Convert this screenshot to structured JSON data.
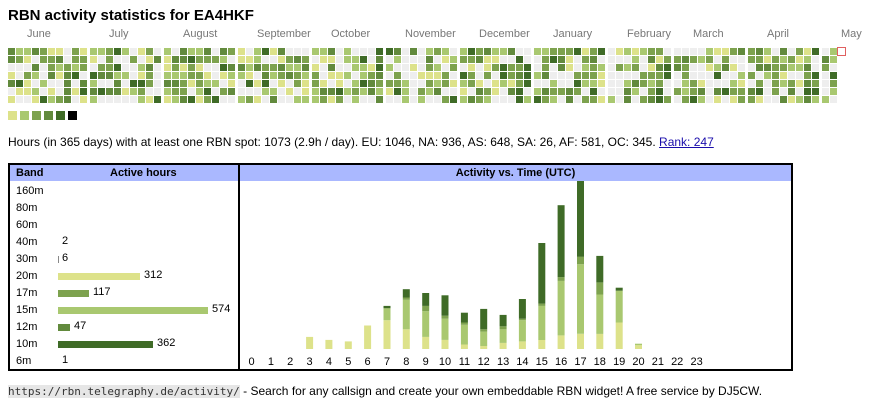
{
  "title": "RBN activity statistics for EA4HKF",
  "colors": {
    "empty": "#eeeeee",
    "levels": [
      "#dde28a",
      "#a9c870",
      "#7da24e",
      "#628a3d",
      "#3f6b27",
      "#000000"
    ],
    "header": "#aab8ff",
    "today_outline": "#e06060"
  },
  "heatmap": {
    "months": [
      "June",
      "July",
      "August",
      "September",
      "October",
      "November",
      "December",
      "January",
      "February",
      "March",
      "April",
      "May"
    ],
    "month_week_starts": [
      0,
      10,
      19,
      28,
      37,
      46,
      55,
      64,
      73,
      81,
      90,
      99
    ],
    "weeks": 102
  },
  "summary": {
    "text": "Hours (in 365 days) with at least one RBN spot: 1073 (2.9h / day). EU: 1046, NA: 936, AS: 648, SA: 26, AF: 581, OC: 345.",
    "rank_label": "Rank: 247"
  },
  "bands_table": {
    "header_band": "Band",
    "header_active": "Active hours",
    "rows": [
      {
        "band": "160m",
        "value": null,
        "level": 0
      },
      {
        "band": "80m",
        "value": null,
        "level": 0
      },
      {
        "band": "60m",
        "value": null,
        "level": 0
      },
      {
        "band": "40m",
        "value": 2,
        "level": 2
      },
      {
        "band": "30m",
        "value": 6,
        "level": 4
      },
      {
        "band": "20m",
        "value": 312,
        "level": 0
      },
      {
        "band": "17m",
        "value": 117,
        "level": 2
      },
      {
        "band": "15m",
        "value": 574,
        "level": 1
      },
      {
        "band": "12m",
        "value": 47,
        "level": 3
      },
      {
        "band": "10m",
        "value": 362,
        "level": 4
      },
      {
        "band": "6m",
        "value": 1,
        "level": 0
      }
    ]
  },
  "activity_chart": {
    "title": "Activity vs. Time (UTC)",
    "x_labels": [
      "0",
      "1",
      "2",
      "3",
      "4",
      "5",
      "6",
      "7",
      "8",
      "9",
      "10",
      "11",
      "12",
      "13",
      "14",
      "15",
      "16",
      "17",
      "18",
      "19",
      "20",
      "21",
      "22",
      "23"
    ]
  },
  "chart_data": {
    "type": "bar",
    "title": "Activity vs. Time (UTC)",
    "categories": [
      "0",
      "1",
      "2",
      "3",
      "4",
      "5",
      "6",
      "7",
      "8",
      "9",
      "10",
      "11",
      "12",
      "13",
      "14",
      "15",
      "16",
      "17",
      "18",
      "19",
      "20",
      "21",
      "22",
      "23"
    ],
    "series": [
      {
        "values": [
          0,
          0,
          0,
          16,
          12,
          10,
          31,
          38,
          26,
          16,
          12,
          6,
          4,
          8,
          10,
          12,
          18,
          20,
          20,
          35,
          5,
          0,
          0,
          0
        ]
      },
      {
        "values": [
          0,
          0,
          0,
          0,
          0,
          0,
          0,
          16,
          39,
          34,
          28,
          26,
          19,
          18,
          28,
          45,
          72,
          92,
          52,
          42,
          2,
          0,
          0,
          0
        ]
      },
      {
        "values": [
          0,
          0,
          0,
          0,
          0,
          0,
          0,
          0,
          3,
          7,
          4,
          3,
          3,
          4,
          2,
          3,
          5,
          10,
          16,
          0,
          0,
          0,
          0,
          0
        ]
      },
      {
        "values": [
          0,
          0,
          0,
          0,
          0,
          0,
          0,
          3,
          11,
          17,
          27,
          13,
          27,
          15,
          26,
          80,
          95,
          105,
          35,
          4,
          0,
          0,
          0,
          0
        ]
      }
    ]
  },
  "footer": {
    "url": "https://rbn.telegraphy.de/activity/",
    "text": " - Search for any callsign and create your own embeddable RBN widget! A free service by DJ5CW."
  }
}
